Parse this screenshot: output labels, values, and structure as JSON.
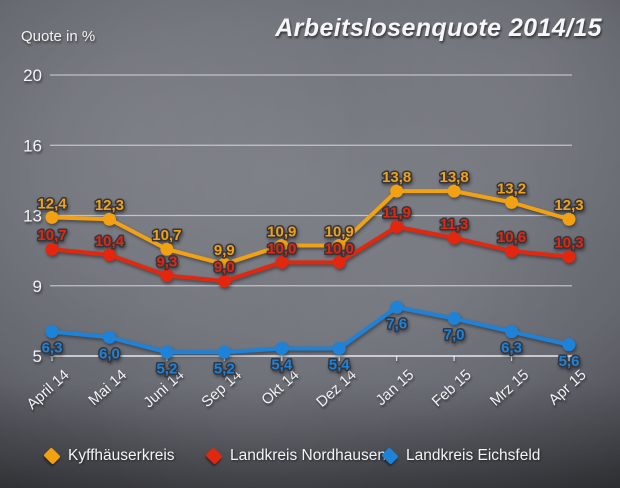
{
  "chart_data": {
    "type": "line",
    "title": "Arbeitslosenquote 2014/15",
    "ylabel": "Quote in %",
    "xlabel": "",
    "ylim": [
      5,
      20
    ],
    "y_tick_labels": [
      "20",
      "16",
      "13",
      "9",
      "5"
    ],
    "grid": true,
    "legend_position": "bottom",
    "categories": [
      "April 14",
      "Mai 14",
      "Juni 14",
      "Sep 14",
      "Okt 14",
      "Dez 14",
      "Jan 15",
      "Feb 15",
      "Mrz 15",
      "Apr 15"
    ],
    "series": [
      {
        "name": "Kyffhäuserkreis",
        "color": "#f2a112",
        "label_side": "above",
        "values": [
          12.4,
          12.3,
          10.7,
          9.9,
          10.9,
          10.9,
          13.8,
          13.8,
          13.2,
          12.3
        ],
        "labels": [
          "12,4",
          "12,3",
          "10,7",
          "9,9",
          "10,9",
          "10,9",
          "13,8",
          "13,8",
          "13,2",
          "12,3"
        ]
      },
      {
        "name": "Landkreis Nordhausen",
        "color": "#e2270e",
        "label_side": "above",
        "values": [
          10.7,
          10.4,
          9.3,
          9.0,
          10.0,
          10.0,
          11.9,
          11.3,
          10.6,
          10.3
        ],
        "labels": [
          "10,7",
          "10,4",
          "9,3",
          "9,0",
          "10,0",
          "10,0",
          "11,9",
          "11,3",
          "10,6",
          "10,3"
        ]
      },
      {
        "name": "Landkreis Eichsfeld",
        "color": "#1e82d8",
        "label_side": "below",
        "values": [
          6.3,
          6.0,
          5.2,
          5.2,
          5.4,
          5.4,
          7.6,
          7.0,
          6.3,
          5.6
        ],
        "labels": [
          "6,3",
          "6,0",
          "5,2",
          "5,2",
          "5,4",
          "5,4",
          "7,6",
          "7,0",
          "6,3",
          "5,6"
        ]
      }
    ]
  }
}
